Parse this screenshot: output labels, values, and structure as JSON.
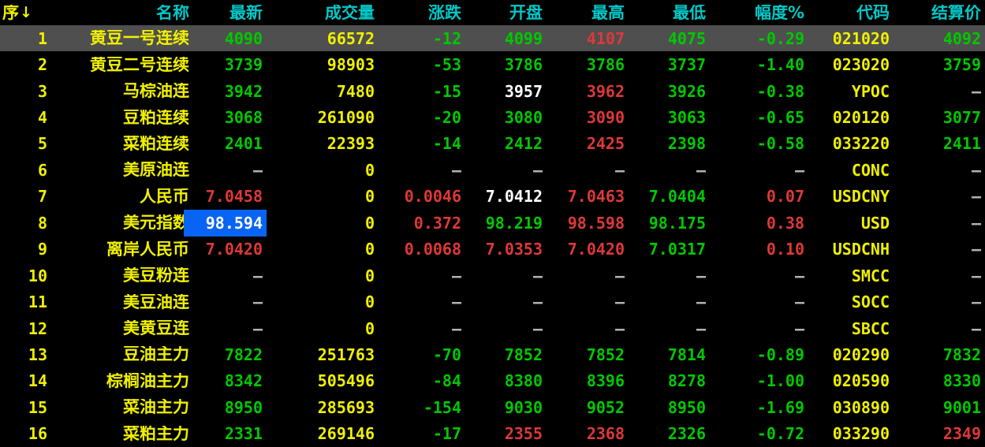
{
  "app": {
    "kind": "futures-quote-board"
  },
  "colors": {
    "green": "#00c800",
    "red": "#de3838",
    "yellow": "#f0f000",
    "white": "#ffffff",
    "gray": "#b4b4b4",
    "header_cyan": "#00c8c8",
    "row_highlight_bg": "#4f4f4f",
    "selected_cell_bg": "#0864f4",
    "background": "#000000"
  },
  "table": {
    "sort_arrow": "↓",
    "columns": [
      {
        "key": "seq",
        "label": "序"
      },
      {
        "key": "name",
        "label": "名称"
      },
      {
        "key": "latest",
        "label": "最新"
      },
      {
        "key": "volume",
        "label": "成交量"
      },
      {
        "key": "change",
        "label": "涨跌"
      },
      {
        "key": "open",
        "label": "开盘"
      },
      {
        "key": "high",
        "label": "最高"
      },
      {
        "key": "low",
        "label": "最低"
      },
      {
        "key": "range_pct",
        "label": "幅度%"
      },
      {
        "key": "code",
        "label": "代码"
      },
      {
        "key": "settle",
        "label": "结算价"
      }
    ],
    "rows": [
      {
        "highlighted": true,
        "selected_cell": -1,
        "cells": [
          [
            "1",
            "yellow"
          ],
          [
            "黄豆一号连续",
            "yellow"
          ],
          [
            "4090",
            "green"
          ],
          [
            "66572",
            "yellow"
          ],
          [
            "-12",
            "green"
          ],
          [
            "4099",
            "green"
          ],
          [
            "4107",
            "red"
          ],
          [
            "4075",
            "green"
          ],
          [
            "-0.29",
            "green"
          ],
          [
            "021020",
            "yellow"
          ],
          [
            "4092",
            "green"
          ]
        ]
      },
      {
        "highlighted": false,
        "selected_cell": -1,
        "cells": [
          [
            "2",
            "yellow"
          ],
          [
            "黄豆二号连续",
            "yellow"
          ],
          [
            "3739",
            "green"
          ],
          [
            "98903",
            "yellow"
          ],
          [
            "-53",
            "green"
          ],
          [
            "3786",
            "green"
          ],
          [
            "3786",
            "green"
          ],
          [
            "3737",
            "green"
          ],
          [
            "-1.40",
            "green"
          ],
          [
            "023020",
            "yellow"
          ],
          [
            "3759",
            "green"
          ]
        ]
      },
      {
        "highlighted": false,
        "selected_cell": -1,
        "cells": [
          [
            "3",
            "yellow"
          ],
          [
            "马棕油连",
            "yellow"
          ],
          [
            "3942",
            "green"
          ],
          [
            "7480",
            "yellow"
          ],
          [
            "-15",
            "green"
          ],
          [
            "3957",
            "white"
          ],
          [
            "3962",
            "red"
          ],
          [
            "3926",
            "green"
          ],
          [
            "-0.38",
            "green"
          ],
          [
            "YPOC",
            "yellow"
          ],
          [
            "—",
            "gray"
          ]
        ]
      },
      {
        "highlighted": false,
        "selected_cell": -1,
        "cells": [
          [
            "4",
            "yellow"
          ],
          [
            "豆粕连续",
            "yellow"
          ],
          [
            "3068",
            "green"
          ],
          [
            "261090",
            "yellow"
          ],
          [
            "-20",
            "green"
          ],
          [
            "3080",
            "green"
          ],
          [
            "3090",
            "red"
          ],
          [
            "3063",
            "green"
          ],
          [
            "-0.65",
            "green"
          ],
          [
            "020120",
            "yellow"
          ],
          [
            "3077",
            "green"
          ]
        ]
      },
      {
        "highlighted": false,
        "selected_cell": -1,
        "cells": [
          [
            "5",
            "yellow"
          ],
          [
            "菜粕连续",
            "yellow"
          ],
          [
            "2401",
            "green"
          ],
          [
            "22393",
            "yellow"
          ],
          [
            "-14",
            "green"
          ],
          [
            "2412",
            "green"
          ],
          [
            "2425",
            "red"
          ],
          [
            "2398",
            "green"
          ],
          [
            "-0.58",
            "green"
          ],
          [
            "033220",
            "yellow"
          ],
          [
            "2411",
            "green"
          ]
        ]
      },
      {
        "highlighted": false,
        "selected_cell": -1,
        "cells": [
          [
            "6",
            "yellow"
          ],
          [
            "美原油连",
            "yellow"
          ],
          [
            "—",
            "gray"
          ],
          [
            "0",
            "yellow"
          ],
          [
            "—",
            "gray"
          ],
          [
            "—",
            "gray"
          ],
          [
            "—",
            "gray"
          ],
          [
            "—",
            "gray"
          ],
          [
            "—",
            "gray"
          ],
          [
            "CONC",
            "yellow"
          ],
          [
            "—",
            "gray"
          ]
        ]
      },
      {
        "highlighted": false,
        "selected_cell": -1,
        "cells": [
          [
            "7",
            "yellow"
          ],
          [
            "人民币",
            "yellow"
          ],
          [
            "7.0458",
            "red"
          ],
          [
            "0",
            "yellow"
          ],
          [
            "0.0046",
            "red"
          ],
          [
            "7.0412",
            "white"
          ],
          [
            "7.0463",
            "red"
          ],
          [
            "7.0404",
            "green"
          ],
          [
            "0.07",
            "red"
          ],
          [
            "USDCNY",
            "yellow"
          ],
          [
            "—",
            "gray"
          ]
        ]
      },
      {
        "highlighted": false,
        "selected_cell": 2,
        "cells": [
          [
            "8",
            "yellow"
          ],
          [
            "美元指数",
            "yellow"
          ],
          [
            "98.594",
            "white"
          ],
          [
            "0",
            "yellow"
          ],
          [
            "0.372",
            "red"
          ],
          [
            "98.219",
            "green"
          ],
          [
            "98.598",
            "red"
          ],
          [
            "98.175",
            "green"
          ],
          [
            "0.38",
            "red"
          ],
          [
            "USD",
            "yellow"
          ],
          [
            "—",
            "gray"
          ]
        ]
      },
      {
        "highlighted": false,
        "selected_cell": -1,
        "cells": [
          [
            "9",
            "yellow"
          ],
          [
            "离岸人民币",
            "yellow"
          ],
          [
            "7.0420",
            "red"
          ],
          [
            "0",
            "yellow"
          ],
          [
            "0.0068",
            "red"
          ],
          [
            "7.0353",
            "red"
          ],
          [
            "7.0420",
            "red"
          ],
          [
            "7.0317",
            "green"
          ],
          [
            "0.10",
            "red"
          ],
          [
            "USDCNH",
            "yellow"
          ],
          [
            "—",
            "gray"
          ]
        ]
      },
      {
        "highlighted": false,
        "selected_cell": -1,
        "cells": [
          [
            "10",
            "yellow"
          ],
          [
            "美豆粉连",
            "yellow"
          ],
          [
            "—",
            "gray"
          ],
          [
            "0",
            "yellow"
          ],
          [
            "—",
            "gray"
          ],
          [
            "—",
            "gray"
          ],
          [
            "—",
            "gray"
          ],
          [
            "—",
            "gray"
          ],
          [
            "—",
            "gray"
          ],
          [
            "SMCC",
            "yellow"
          ],
          [
            "—",
            "gray"
          ]
        ]
      },
      {
        "highlighted": false,
        "selected_cell": -1,
        "cells": [
          [
            "11",
            "yellow"
          ],
          [
            "美豆油连",
            "yellow"
          ],
          [
            "—",
            "gray"
          ],
          [
            "0",
            "yellow"
          ],
          [
            "—",
            "gray"
          ],
          [
            "—",
            "gray"
          ],
          [
            "—",
            "gray"
          ],
          [
            "—",
            "gray"
          ],
          [
            "—",
            "gray"
          ],
          [
            "SOCC",
            "yellow"
          ],
          [
            "—",
            "gray"
          ]
        ]
      },
      {
        "highlighted": false,
        "selected_cell": -1,
        "cells": [
          [
            "12",
            "yellow"
          ],
          [
            "美黄豆连",
            "yellow"
          ],
          [
            "—",
            "gray"
          ],
          [
            "0",
            "yellow"
          ],
          [
            "—",
            "gray"
          ],
          [
            "—",
            "gray"
          ],
          [
            "—",
            "gray"
          ],
          [
            "—",
            "gray"
          ],
          [
            "—",
            "gray"
          ],
          [
            "SBCC",
            "yellow"
          ],
          [
            "—",
            "gray"
          ]
        ]
      },
      {
        "highlighted": false,
        "selected_cell": -1,
        "cells": [
          [
            "13",
            "yellow"
          ],
          [
            "豆油主力",
            "yellow"
          ],
          [
            "7822",
            "green"
          ],
          [
            "251763",
            "yellow"
          ],
          [
            "-70",
            "green"
          ],
          [
            "7852",
            "green"
          ],
          [
            "7852",
            "green"
          ],
          [
            "7814",
            "green"
          ],
          [
            "-0.89",
            "green"
          ],
          [
            "020290",
            "yellow"
          ],
          [
            "7832",
            "green"
          ]
        ]
      },
      {
        "highlighted": false,
        "selected_cell": -1,
        "cells": [
          [
            "14",
            "yellow"
          ],
          [
            "棕榈油主力",
            "yellow"
          ],
          [
            "8342",
            "green"
          ],
          [
            "505496",
            "yellow"
          ],
          [
            "-84",
            "green"
          ],
          [
            "8380",
            "green"
          ],
          [
            "8396",
            "green"
          ],
          [
            "8278",
            "green"
          ],
          [
            "-1.00",
            "green"
          ],
          [
            "020590",
            "yellow"
          ],
          [
            "8330",
            "green"
          ]
        ]
      },
      {
        "highlighted": false,
        "selected_cell": -1,
        "cells": [
          [
            "15",
            "yellow"
          ],
          [
            "菜油主力",
            "yellow"
          ],
          [
            "8950",
            "green"
          ],
          [
            "285693",
            "yellow"
          ],
          [
            "-154",
            "green"
          ],
          [
            "9030",
            "green"
          ],
          [
            "9052",
            "green"
          ],
          [
            "8950",
            "green"
          ],
          [
            "-1.69",
            "green"
          ],
          [
            "030890",
            "yellow"
          ],
          [
            "9001",
            "green"
          ]
        ]
      },
      {
        "highlighted": false,
        "selected_cell": -1,
        "cells": [
          [
            "16",
            "yellow"
          ],
          [
            "菜粕主力",
            "yellow"
          ],
          [
            "2331",
            "green"
          ],
          [
            "269146",
            "yellow"
          ],
          [
            "-17",
            "green"
          ],
          [
            "2355",
            "red"
          ],
          [
            "2368",
            "red"
          ],
          [
            "2326",
            "green"
          ],
          [
            "-0.72",
            "green"
          ],
          [
            "033290",
            "yellow"
          ],
          [
            "2349",
            "red"
          ]
        ]
      }
    ]
  }
}
